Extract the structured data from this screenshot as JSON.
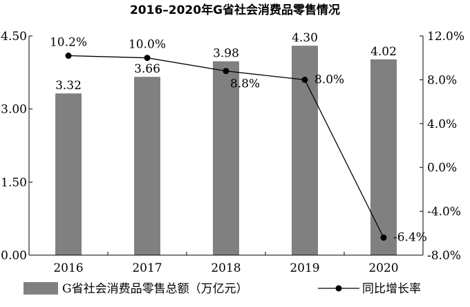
{
  "chart_data": {
    "type": "bar",
    "title": "2016–2020年G省社会消费品零售情况",
    "categories": [
      "2016",
      "2017",
      "2018",
      "2019",
      "2020"
    ],
    "series": [
      {
        "name": "G省社会消费品零售总额（万亿元）",
        "type": "bar",
        "axis": "left",
        "values": [
          3.32,
          3.66,
          3.98,
          4.3,
          4.02
        ],
        "labels": [
          "3.32",
          "3.66",
          "3.98",
          "4.30",
          "4.02"
        ],
        "color": "#808080"
      },
      {
        "name": "同比增长率",
        "type": "line",
        "axis": "right",
        "values": [
          10.2,
          10.0,
          8.8,
          8.0,
          -6.4
        ],
        "labels": [
          "10.2%",
          "10.0%",
          "8.8%",
          "8.0%",
          "-6.4%"
        ],
        "color": "#000000"
      }
    ],
    "y_left": {
      "ylim": [
        0,
        4.5
      ],
      "ticks": [
        "0.00",
        "1.50",
        "3.00",
        "4.50"
      ]
    },
    "y_right": {
      "ylim": [
        -8,
        12
      ],
      "ticks": [
        "12.0%",
        "8.0%",
        "4.0%",
        "0.0%",
        "-4.0%",
        "-8.0%"
      ]
    },
    "legend": "bottom",
    "grid": false
  }
}
